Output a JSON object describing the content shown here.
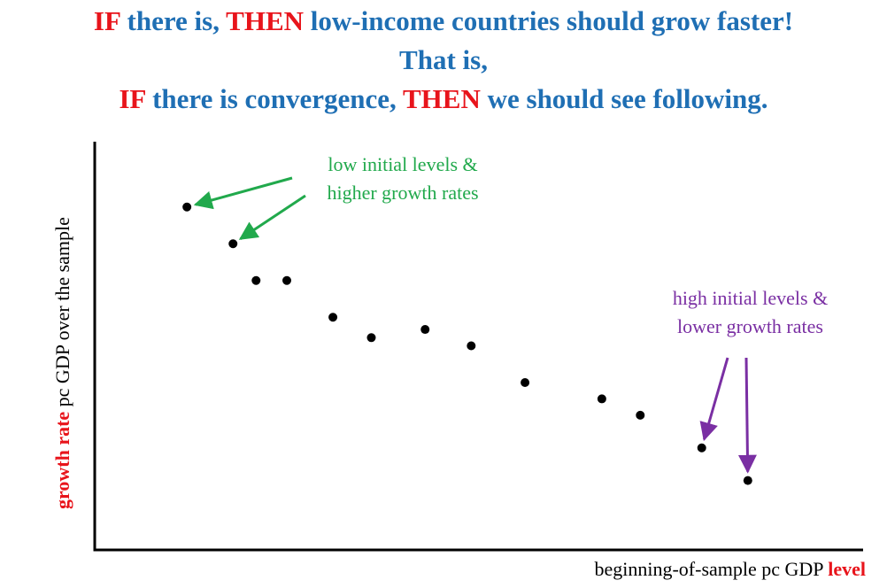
{
  "title": {
    "line1": {
      "if": "IF",
      "a": " there is, ",
      "then": "THEN",
      "b": " low-income countries should grow faster!"
    },
    "line2": "That is,",
    "line3": {
      "if": "IF",
      "a": " there is convergence, ",
      "then": "THEN",
      "b": " we should see following."
    }
  },
  "colors": {
    "title_blue": "#1f6fb4",
    "emphasis_red": "#e8141b",
    "annotation_green": "#21a94c",
    "annotation_purple": "#7a2fa3",
    "points": "#000000"
  },
  "chart_data": {
    "type": "scatter",
    "title": "",
    "xlabel": {
      "plain": "beginning-of-sample pc GDP ",
      "emphasis": "level"
    },
    "ylabel": {
      "emphasis": "growth rate",
      "plain": " pc GDP over the sample"
    },
    "xlim": [
      0,
      100
    ],
    "ylim": [
      0,
      100
    ],
    "axis_ticks": false,
    "grid": false,
    "points": [
      {
        "x": 12,
        "y": 84
      },
      {
        "x": 18,
        "y": 75
      },
      {
        "x": 21,
        "y": 66
      },
      {
        "x": 25,
        "y": 66
      },
      {
        "x": 31,
        "y": 57
      },
      {
        "x": 36,
        "y": 52
      },
      {
        "x": 43,
        "y": 54
      },
      {
        "x": 49,
        "y": 50
      },
      {
        "x": 56,
        "y": 41
      },
      {
        "x": 66,
        "y": 37
      },
      {
        "x": 71,
        "y": 33
      },
      {
        "x": 79,
        "y": 25
      },
      {
        "x": 85,
        "y": 17
      }
    ],
    "annotations": [
      {
        "name": "low",
        "lines": [
          "low initial levels &",
          "higher growth rates"
        ],
        "color": "#21a94c",
        "arrow_targets": [
          0,
          1
        ]
      },
      {
        "name": "high",
        "lines": [
          "high initial levels &",
          "lower growth rates"
        ],
        "color": "#7a2fa3",
        "arrow_targets": [
          11,
          12
        ]
      }
    ]
  }
}
